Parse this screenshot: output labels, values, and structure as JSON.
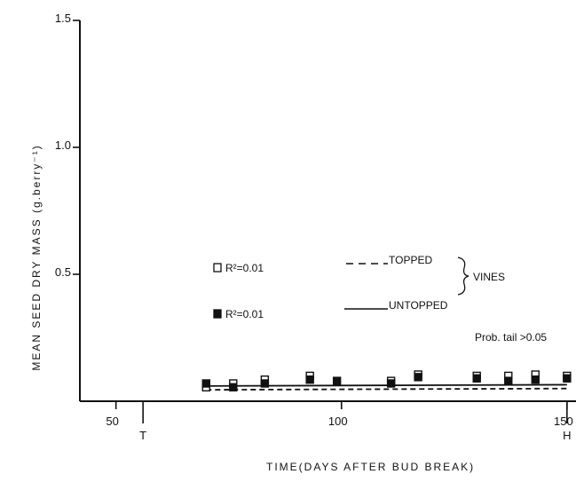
{
  "chart_data": {
    "type": "scatter",
    "title": "",
    "xlabel": "TIME(DAYS  AFTER  BUD  BREAK)",
    "ylabel": "MEAN   SEED   DRY   MASS (g.berry⁻¹)",
    "xlim": [
      42,
      152
    ],
    "ylim": [
      0,
      1.5
    ],
    "x_ticks": [
      50,
      100,
      150
    ],
    "y_ticks": [
      0.5,
      1.0,
      1.5
    ],
    "y_tick_labels": [
      "0.5",
      "1.0",
      "1.5"
    ],
    "grid": false,
    "markers": [
      {
        "label": "T",
        "x": 56
      },
      {
        "label": "H",
        "x": 150
      }
    ],
    "series": [
      {
        "name": "TOPPED",
        "marker": "open-square",
        "line_style": "dashed",
        "r2_label": "R²=0.01",
        "x": [
          70,
          76,
          83,
          93,
          111,
          117,
          130,
          137,
          143,
          150
        ],
        "y": [
          0.055,
          0.07,
          0.085,
          0.1,
          0.08,
          0.105,
          0.1,
          0.1,
          0.105,
          0.1
        ],
        "fit": {
          "x": [
            70,
            150
          ],
          "y": [
            0.045,
            0.05
          ]
        }
      },
      {
        "name": "UNTOPPED",
        "marker": "filled-square",
        "line_style": "solid",
        "r2_label": "R²=0.01",
        "x": [
          70,
          76,
          83,
          93,
          99,
          111,
          117,
          130,
          137,
          143,
          150
        ],
        "y": [
          0.07,
          0.055,
          0.07,
          0.085,
          0.08,
          0.07,
          0.095,
          0.09,
          0.08,
          0.085,
          0.09
        ],
        "fit": {
          "x": [
            70,
            150
          ],
          "y": [
            0.06,
            0.065
          ]
        }
      }
    ],
    "legend_group_label": "VINES",
    "annotation": "Prob. tail >0.05"
  }
}
